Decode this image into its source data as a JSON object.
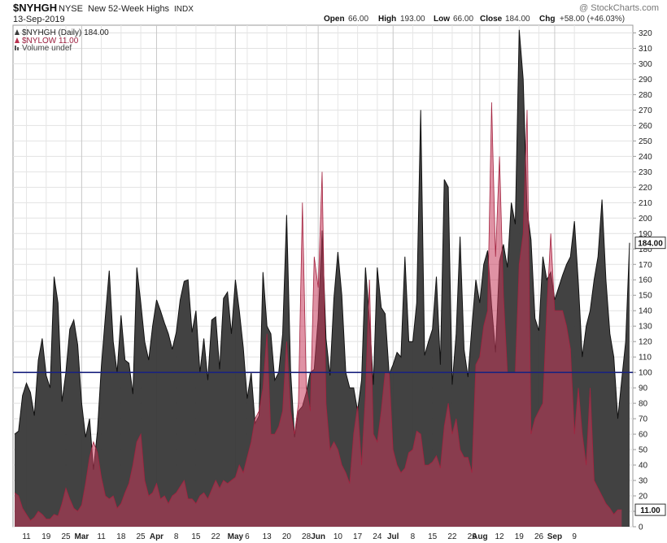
{
  "header": {
    "symbol": "$NYHGH",
    "exchange": "NYSE",
    "name": "New 52-Week Highs",
    "type": "INDX",
    "watermark": "@ StockCharts.com",
    "date": "13-Sep-2019",
    "ohlc": {
      "open_label": "Open",
      "open": "66.00",
      "high_label": "High",
      "high": "193.00",
      "low_label": "Low",
      "low": "66.00",
      "close_label": "Close",
      "close": "184.00",
      "chg_label": "Chg",
      "chg": "+58.00 (+46.03%)"
    }
  },
  "legend": [
    {
      "text": "$NYHGH (Daily) 184.00",
      "color": "#3a3a3a"
    },
    {
      "text": "$NYLOW 11.00",
      "color": "#b8304e"
    },
    {
      "text": "Volume undef",
      "color": "#555555"
    }
  ],
  "chart_data": {
    "type": "area",
    "ylim": [
      0,
      325
    ],
    "y_ticks": [
      0,
      10,
      20,
      30,
      40,
      50,
      60,
      70,
      80,
      90,
      100,
      110,
      120,
      130,
      140,
      150,
      160,
      170,
      180,
      190,
      200,
      210,
      220,
      230,
      240,
      250,
      260,
      270,
      280,
      290,
      300,
      310,
      320
    ],
    "reference_line": 100,
    "x_labels": [
      {
        "i": 3,
        "t": "11",
        "bold": false
      },
      {
        "i": 8,
        "t": "19",
        "bold": false
      },
      {
        "i": 13,
        "t": "25",
        "bold": false
      },
      {
        "i": 17,
        "t": "Mar",
        "bold": true
      },
      {
        "i": 22,
        "t": "11",
        "bold": false
      },
      {
        "i": 27,
        "t": "18",
        "bold": false
      },
      {
        "i": 32,
        "t": "25",
        "bold": false
      },
      {
        "i": 36,
        "t": "Apr",
        "bold": true
      },
      {
        "i": 41,
        "t": "8",
        "bold": false
      },
      {
        "i": 46,
        "t": "15",
        "bold": false
      },
      {
        "i": 51,
        "t": "22",
        "bold": false
      },
      {
        "i": 56,
        "t": "May",
        "bold": true
      },
      {
        "i": 59,
        "t": "6",
        "bold": false
      },
      {
        "i": 64,
        "t": "13",
        "bold": false
      },
      {
        "i": 69,
        "t": "20",
        "bold": false
      },
      {
        "i": 74,
        "t": "28",
        "bold": false
      },
      {
        "i": 77,
        "t": "Jun",
        "bold": true
      },
      {
        "i": 82,
        "t": "10",
        "bold": false
      },
      {
        "i": 87,
        "t": "17",
        "bold": false
      },
      {
        "i": 92,
        "t": "24",
        "bold": false
      },
      {
        "i": 96,
        "t": "Jul",
        "bold": true
      },
      {
        "i": 101,
        "t": "8",
        "bold": false
      },
      {
        "i": 106,
        "t": "15",
        "bold": false
      },
      {
        "i": 111,
        "t": "22",
        "bold": false
      },
      {
        "i": 116,
        "t": "29",
        "bold": false
      },
      {
        "i": 118,
        "t": "Aug",
        "bold": true
      },
      {
        "i": 123,
        "t": "12",
        "bold": false
      },
      {
        "i": 128,
        "t": "19",
        "bold": false
      },
      {
        "i": 133,
        "t": "26",
        "bold": false
      },
      {
        "i": 137,
        "t": "Sep",
        "bold": true
      },
      {
        "i": 142,
        "t": "9",
        "bold": false
      }
    ],
    "series": [
      {
        "name": "$NYHGH",
        "color": "#3a3a3a",
        "last_value_label": "184.00",
        "values": [
          60,
          62,
          85,
          93,
          87,
          72,
          108,
          122,
          98,
          90,
          162,
          145,
          81,
          100,
          128,
          134,
          118,
          80,
          58,
          70,
          37,
          62,
          104,
          136,
          166,
          120,
          100,
          137,
          108,
          106,
          86,
          168,
          145,
          120,
          108,
          130,
          147,
          140,
          132,
          125,
          115,
          126,
          147,
          159,
          160,
          126,
          140,
          100,
          122,
          95,
          134,
          136,
          102,
          148,
          152,
          125,
          160,
          140,
          116,
          83,
          100,
          67,
          72,
          165,
          130,
          125,
          95,
          100,
          125,
          202,
          102,
          58,
          75,
          78,
          87,
          100,
          102,
          135,
          192,
          122,
          98,
          148,
          178,
          150,
          100,
          90,
          90,
          75,
          95,
          168,
          134,
          92,
          168,
          142,
          138,
          99,
          105,
          113,
          110,
          175,
          120,
          120,
          145,
          270,
          111,
          120,
          128,
          162,
          105,
          225,
          220,
          92,
          125,
          188,
          115,
          97,
          130,
          160,
          145,
          170,
          179,
          143,
          113,
          172,
          183,
          168,
          210,
          196,
          322,
          290,
          205,
          186,
          135,
          127,
          175,
          160,
          165,
          147,
          155,
          163,
          170,
          175,
          198,
          158,
          110,
          130,
          140,
          160,
          175,
          212,
          160,
          125,
          110,
          70,
          95,
          120,
          184
        ]
      },
      {
        "name": "$NYLOW",
        "color": "#c5395a",
        "last_value_label": "11.00",
        "values": [
          22,
          20,
          12,
          8,
          4,
          6,
          10,
          8,
          5,
          5,
          8,
          7,
          15,
          25,
          18,
          12,
          10,
          14,
          28,
          45,
          55,
          48,
          32,
          20,
          18,
          20,
          12,
          15,
          22,
          28,
          40,
          55,
          60,
          30,
          20,
          22,
          28,
          18,
          20,
          15,
          20,
          22,
          26,
          30,
          18,
          18,
          15,
          20,
          22,
          18,
          24,
          30,
          25,
          30,
          28,
          30,
          32,
          40,
          35,
          45,
          55,
          70,
          75,
          90,
          125,
          60,
          60,
          65,
          75,
          120,
          75,
          60,
          80,
          210,
          90,
          75,
          175,
          155,
          230,
          80,
          50,
          55,
          50,
          40,
          35,
          28,
          60,
          78,
          40,
          85,
          160,
          60,
          55,
          75,
          100,
          100,
          50,
          40,
          35,
          38,
          48,
          50,
          62,
          60,
          40,
          40,
          42,
          46,
          38,
          65,
          80,
          60,
          70,
          50,
          45,
          45,
          35,
          105,
          110,
          130,
          140,
          275,
          175,
          240,
          150,
          100,
          100,
          100,
          170,
          190,
          270,
          60,
          70,
          75,
          80,
          140,
          190,
          140,
          140,
          140,
          130,
          115,
          60,
          90,
          60,
          40,
          90,
          30,
          25,
          20,
          15,
          12,
          8,
          11,
          11
        ]
      }
    ]
  }
}
